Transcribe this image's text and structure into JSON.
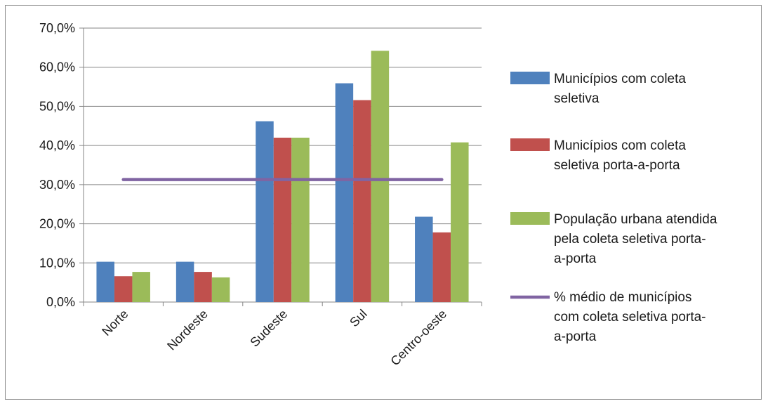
{
  "chart_data": {
    "type": "bar",
    "title": "",
    "xlabel": "",
    "ylabel": "",
    "ylim": [
      0,
      70
    ],
    "y_tick_step": 10,
    "y_tick_format": "pt-BR percent, 1 decimal",
    "grid": true,
    "legend_position": "right",
    "categories": [
      "Norte",
      "Nordeste",
      "Sudeste",
      "Sul",
      "Centro-oeste"
    ],
    "series": [
      {
        "name": "Municípios com coleta seletiva",
        "legend_lines": [
          "Municípios com coleta",
          "seletiva"
        ],
        "type": "bar",
        "color": "#4F81BD",
        "values": [
          10.3,
          10.3,
          46.2,
          55.9,
          21.8
        ]
      },
      {
        "name": "Municípios com coleta seletiva porta-a-porta",
        "legend_lines": [
          "Municípios com coleta",
          "seletiva porta-a-porta"
        ],
        "type": "bar",
        "color": "#C0504D",
        "values": [
          6.6,
          7.7,
          42.0,
          51.6,
          17.8
        ]
      },
      {
        "name": "População urbana atendida pela coleta seletiva porta-a-porta",
        "legend_lines": [
          "População urbana atendida",
          "pela coleta seletiva porta-",
          "a-porta"
        ],
        "type": "bar",
        "color": "#9BBB59",
        "values": [
          7.7,
          6.3,
          42.0,
          64.2,
          40.8
        ]
      },
      {
        "name": "% médio de municípios com coleta seletiva porta-a-porta",
        "legend_lines": [
          "% médio de municípios",
          "com coleta seletiva porta-",
          "a-porta"
        ],
        "type": "line",
        "color": "#8064A2",
        "values": [
          31.3,
          31.3,
          31.3,
          31.3,
          31.3
        ]
      }
    ]
  }
}
